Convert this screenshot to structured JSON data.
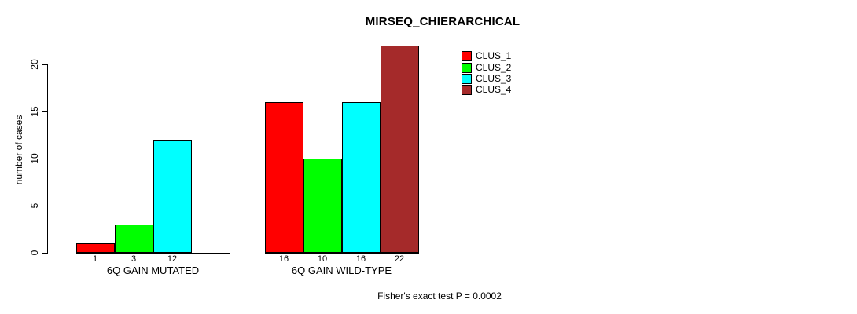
{
  "chart_data": {
    "type": "bar",
    "title": "MIRSEQ_CHIERARCHICAL",
    "xlabel": "",
    "ylabel": "number of cases",
    "ylim": [
      0,
      22
    ],
    "yticks": [
      0,
      5,
      10,
      15,
      20
    ],
    "grid": false,
    "legend_position": "top-right",
    "categories": [
      "6Q GAIN MUTATED",
      "6Q GAIN WILD-TYPE"
    ],
    "series": [
      {
        "name": "CLUS_1",
        "color": "#FF0000",
        "values": [
          1,
          16
        ]
      },
      {
        "name": "CLUS_2",
        "color": "#00FF00",
        "values": [
          3,
          10
        ]
      },
      {
        "name": "CLUS_3",
        "color": "#00FFFF",
        "values": [
          12,
          16
        ]
      },
      {
        "name": "CLUS_4",
        "color": "#A52A2A",
        "values": [
          0,
          22
        ]
      }
    ],
    "bar_value_labels": [
      [
        "1",
        "3",
        "12",
        ""
      ],
      [
        "16",
        "10",
        "16",
        "22"
      ]
    ],
    "annotation": "Fisher's exact test P = 0.0002"
  }
}
